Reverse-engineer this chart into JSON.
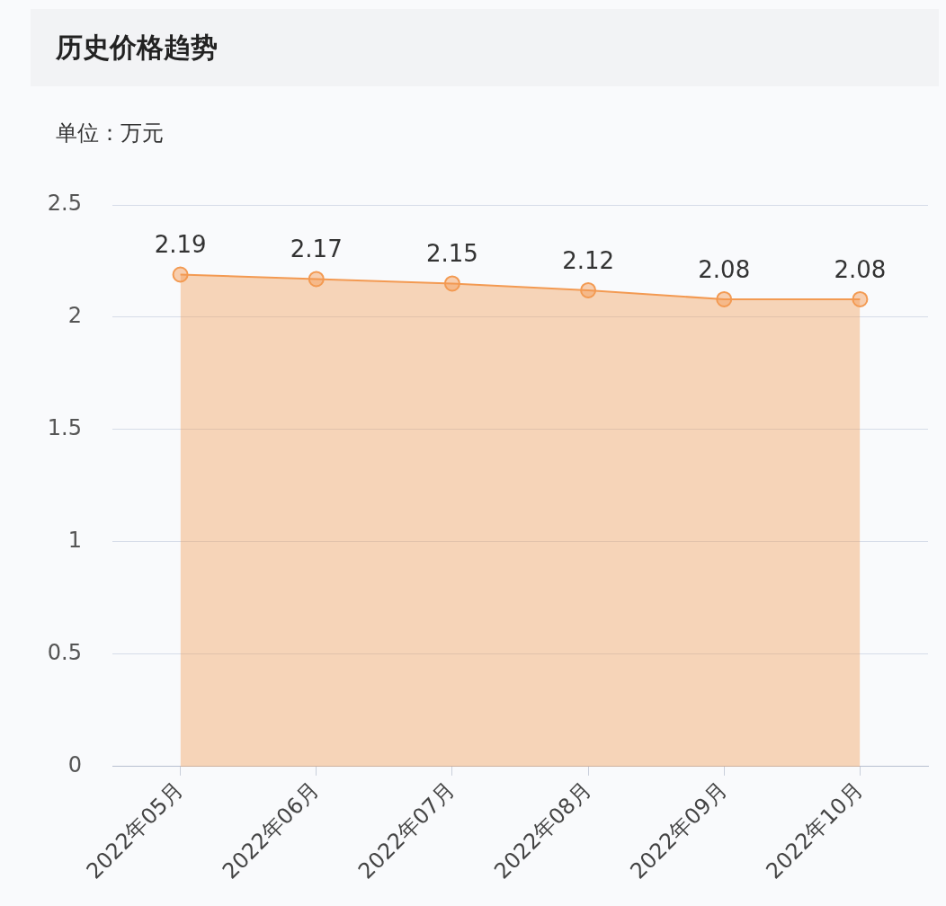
{
  "chart_data": {
    "type": "area",
    "title": "历史价格趋势",
    "ylabel": "单位：万元",
    "categories": [
      "2022年05月",
      "2022年06月",
      "2022年07月",
      "2022年08月",
      "2022年09月",
      "2022年10月"
    ],
    "series": [
      {
        "color": "#f39a52",
        "values": [
          2.19,
          2.17,
          2.15,
          2.12,
          2.08,
          2.08
        ]
      }
    ],
    "ylim": [
      0,
      2.5
    ],
    "yticks": [
      0,
      0.5,
      1,
      1.5,
      2,
      2.5
    ],
    "grid": "y",
    "marker": "circle",
    "data_labels": true,
    "legend": false
  }
}
